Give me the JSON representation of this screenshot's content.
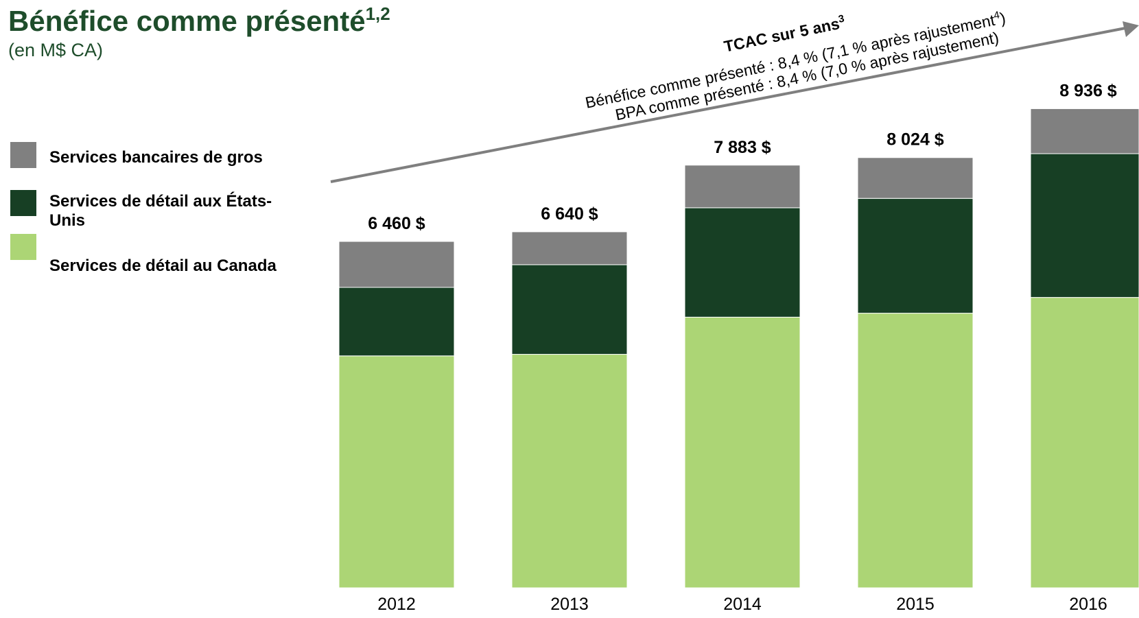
{
  "chart_data": {
    "type": "stacked_bar",
    "title": "Bénéfice comme présenté",
    "title_superscript": "1,2",
    "subtitle": "(en M$ CA)",
    "annotation": {
      "title": "TCAC sur 5 ans",
      "title_superscript": "3",
      "line1": "Bénéfice comme présenté : 8,4 % (7,1 % après rajustement",
      "line1_superscript": "4",
      "line1_end": ")",
      "line2": "BPA comme présenté :  8,4 % (7,0 % après rajustement)"
    },
    "categories": [
      "2012",
      "2013",
      "2014",
      "2015",
      "2016"
    ],
    "series": [
      {
        "name": "Services de détail au Canada",
        "color": "#acd575",
        "values": [
          4326,
          4355,
          5048,
          5122,
          5416
        ]
      },
      {
        "name": "Services de détail aux États-Unis",
        "color": "#173f24",
        "values": [
          1277,
          1671,
          2040,
          2141,
          2681
        ]
      },
      {
        "name": "Services bancaires de gros",
        "color": "#808080",
        "values": [
          857,
          614,
          795,
          761,
          839
        ]
      }
    ],
    "totals": [
      6460,
      6640,
      7883,
      8024,
      8936
    ],
    "total_labels": [
      "6 460 $",
      "6 640 $",
      "7 883 $",
      "8 024 $",
      "8 936 $"
    ],
    "ylim": [
      0,
      9300
    ]
  }
}
